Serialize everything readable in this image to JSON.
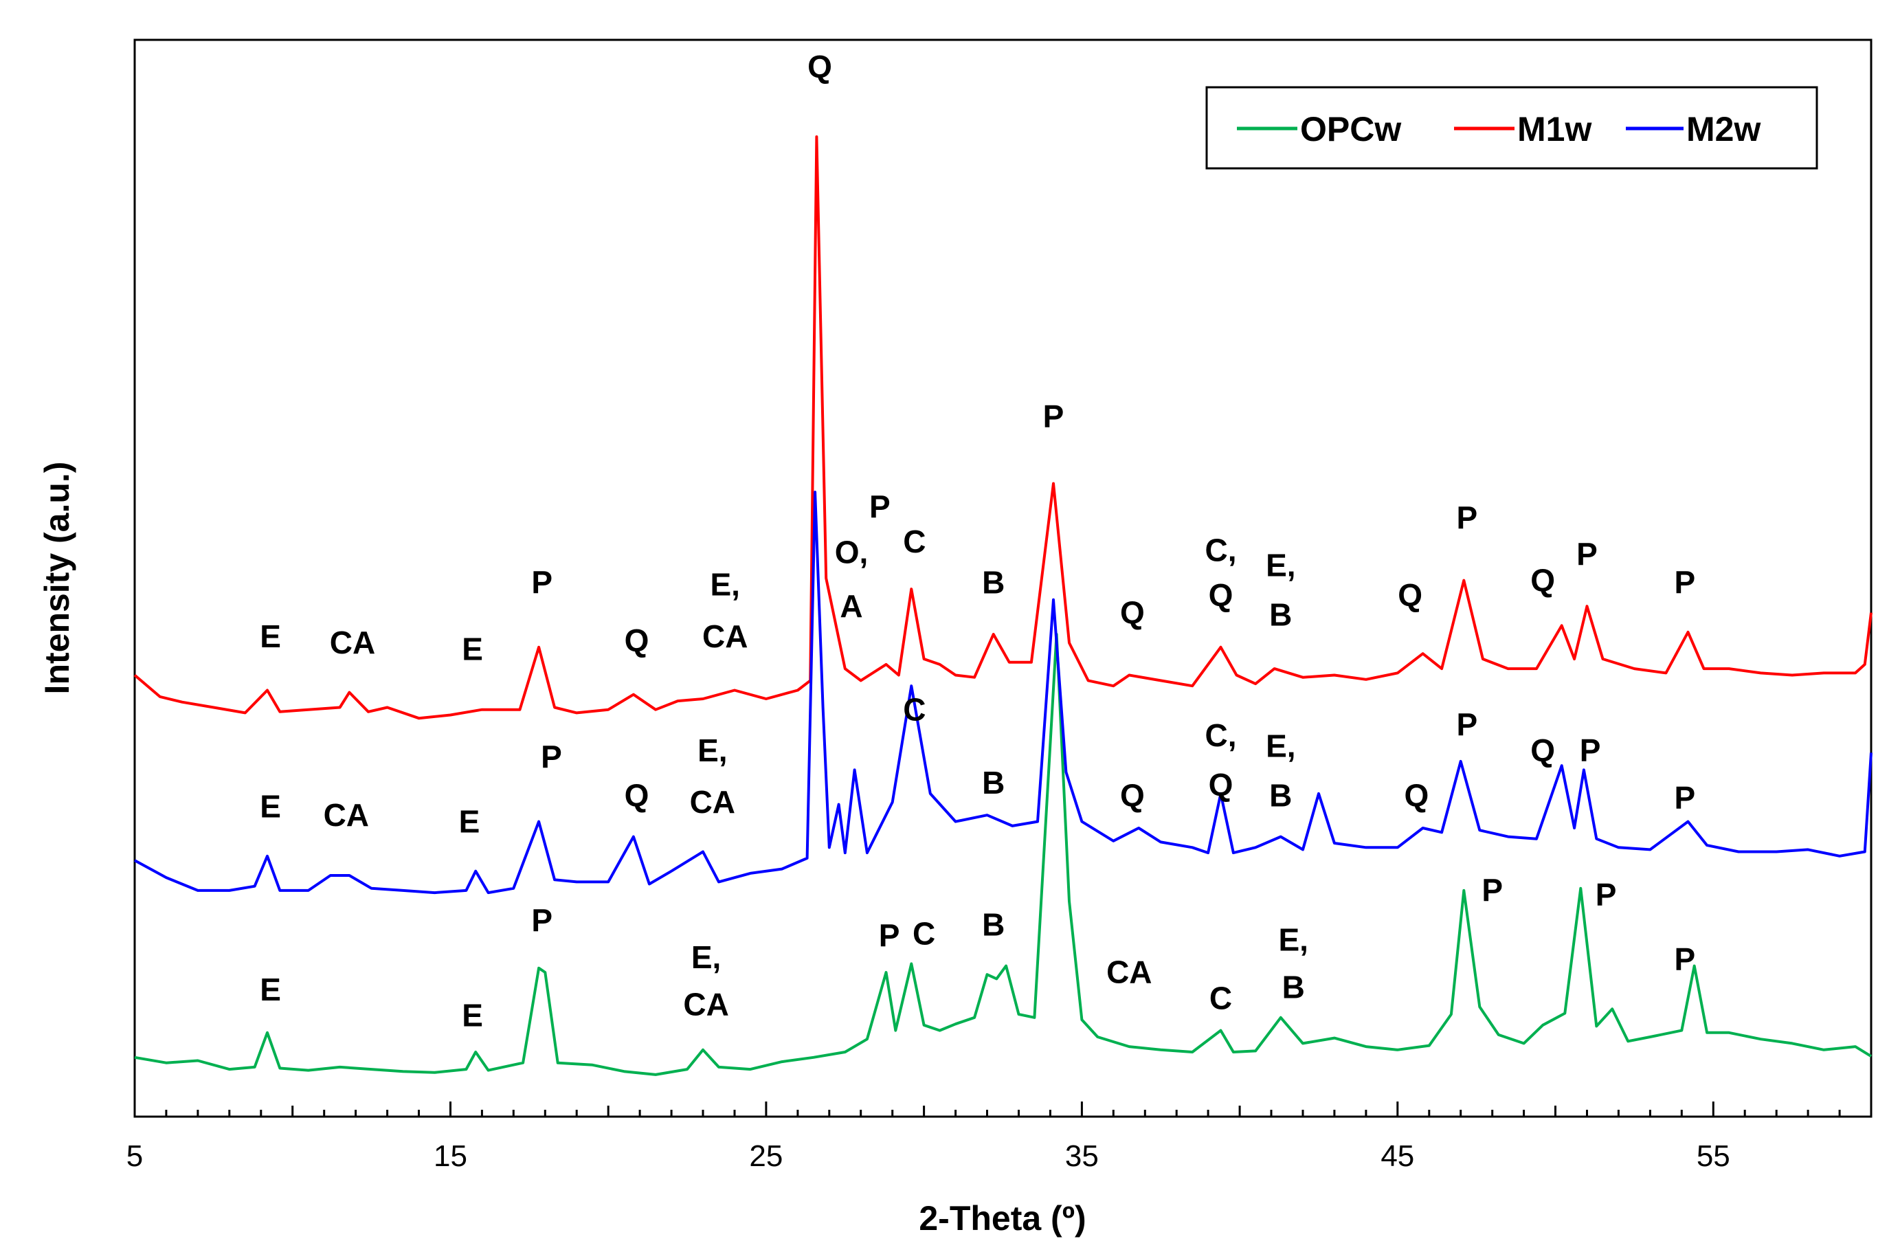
{
  "chart_data": {
    "type": "line",
    "title": "",
    "xlabel": "2-Theta (º)",
    "ylabel": "Intensity (a.u.)",
    "xlim": [
      5,
      60
    ],
    "ylim": [
      0,
      100
    ],
    "xticks": [
      5,
      15,
      25,
      35,
      45,
      55
    ],
    "yticks_shown": false,
    "grid": false,
    "legend_position": "top-right",
    "series": [
      {
        "name": "OPCw",
        "color": "#00b050",
        "points": [
          [
            5,
            5.5
          ],
          [
            6,
            5.0
          ],
          [
            7,
            5.2
          ],
          [
            8,
            4.4
          ],
          [
            8.8,
            4.6
          ],
          [
            9.2,
            7.8
          ],
          [
            9.6,
            4.5
          ],
          [
            10.5,
            4.3
          ],
          [
            11.5,
            4.6
          ],
          [
            12.5,
            4.4
          ],
          [
            13.5,
            4.2
          ],
          [
            14.5,
            4.1
          ],
          [
            15.5,
            4.4
          ],
          [
            15.8,
            6.0
          ],
          [
            16.2,
            4.3
          ],
          [
            17.3,
            5.0
          ],
          [
            17.8,
            13.8
          ],
          [
            18.0,
            13.4
          ],
          [
            18.4,
            5.0
          ],
          [
            19.5,
            4.8
          ],
          [
            20.5,
            4.2
          ],
          [
            21.5,
            3.9
          ],
          [
            22.5,
            4.4
          ],
          [
            23.0,
            6.2
          ],
          [
            23.5,
            4.6
          ],
          [
            24.5,
            4.4
          ],
          [
            25.5,
            5.1
          ],
          [
            26.5,
            5.5
          ],
          [
            27.5,
            6.0
          ],
          [
            28.2,
            7.2
          ],
          [
            28.8,
            13.4
          ],
          [
            29.1,
            8.0
          ],
          [
            29.6,
            14.2
          ],
          [
            30.0,
            8.5
          ],
          [
            30.5,
            8.0
          ],
          [
            31.0,
            8.6
          ],
          [
            31.6,
            9.2
          ],
          [
            32.0,
            13.2
          ],
          [
            32.3,
            12.8
          ],
          [
            32.6,
            14.0
          ],
          [
            33.0,
            9.5
          ],
          [
            33.5,
            9.2
          ],
          [
            34.2,
            44.8
          ],
          [
            34.6,
            20.0
          ],
          [
            35.0,
            9.0
          ],
          [
            35.5,
            7.4
          ],
          [
            36.5,
            6.5
          ],
          [
            37.5,
            6.2
          ],
          [
            38.5,
            6.0
          ],
          [
            39.4,
            8.0
          ],
          [
            39.8,
            6.0
          ],
          [
            40.5,
            6.1
          ],
          [
            41.3,
            9.2
          ],
          [
            42.0,
            6.8
          ],
          [
            43.0,
            7.3
          ],
          [
            44.0,
            6.5
          ],
          [
            45.0,
            6.2
          ],
          [
            46.0,
            6.6
          ],
          [
            46.7,
            9.5
          ],
          [
            47.1,
            21.0
          ],
          [
            47.6,
            10.2
          ],
          [
            48.2,
            7.6
          ],
          [
            49.0,
            6.8
          ],
          [
            49.6,
            8.5
          ],
          [
            50.3,
            9.6
          ],
          [
            50.8,
            21.2
          ],
          [
            51.3,
            8.4
          ],
          [
            51.8,
            10.0
          ],
          [
            52.3,
            7.0
          ],
          [
            53.0,
            7.4
          ],
          [
            54.0,
            8.0
          ],
          [
            54.4,
            14.0
          ],
          [
            54.8,
            7.8
          ],
          [
            55.5,
            7.8
          ],
          [
            56.5,
            7.2
          ],
          [
            57.5,
            6.8
          ],
          [
            58.5,
            6.2
          ],
          [
            59.5,
            6.5
          ],
          [
            60,
            5.6
          ]
        ]
      },
      {
        "name": "M1w",
        "color": "#ff0000",
        "points": [
          [
            5,
            41.0
          ],
          [
            5.8,
            39.0
          ],
          [
            6.5,
            38.5
          ],
          [
            7.5,
            38.0
          ],
          [
            8.5,
            37.5
          ],
          [
            9.2,
            39.6
          ],
          [
            9.6,
            37.6
          ],
          [
            10.5,
            37.8
          ],
          [
            11.5,
            38.0
          ],
          [
            11.8,
            39.4
          ],
          [
            12.4,
            37.6
          ],
          [
            13.0,
            38.0
          ],
          [
            14.0,
            37.0
          ],
          [
            15.0,
            37.3
          ],
          [
            16.0,
            37.8
          ],
          [
            17.2,
            37.8
          ],
          [
            17.8,
            43.6
          ],
          [
            18.3,
            38.0
          ],
          [
            19.0,
            37.5
          ],
          [
            20.0,
            37.8
          ],
          [
            20.8,
            39.2
          ],
          [
            21.5,
            37.8
          ],
          [
            22.2,
            38.6
          ],
          [
            23.0,
            38.8
          ],
          [
            24.0,
            39.6
          ],
          [
            25.0,
            38.8
          ],
          [
            26.0,
            39.6
          ],
          [
            26.4,
            40.5
          ],
          [
            26.6,
            91.0
          ],
          [
            26.9,
            50.0
          ],
          [
            27.5,
            41.6
          ],
          [
            28.0,
            40.5
          ],
          [
            28.8,
            42.0
          ],
          [
            29.2,
            41.0
          ],
          [
            29.6,
            49.0
          ],
          [
            30.0,
            42.5
          ],
          [
            30.5,
            42.0
          ],
          [
            31.0,
            41.0
          ],
          [
            31.6,
            40.8
          ],
          [
            32.2,
            44.8
          ],
          [
            32.7,
            42.2
          ],
          [
            33.4,
            42.2
          ],
          [
            34.1,
            58.8
          ],
          [
            34.6,
            44.0
          ],
          [
            35.2,
            40.5
          ],
          [
            36.0,
            40.0
          ],
          [
            36.5,
            41.0
          ],
          [
            37.5,
            40.5
          ],
          [
            38.5,
            40.0
          ],
          [
            39.4,
            43.6
          ],
          [
            39.9,
            41.0
          ],
          [
            40.5,
            40.2
          ],
          [
            41.1,
            41.6
          ],
          [
            42.0,
            40.8
          ],
          [
            43.0,
            41.0
          ],
          [
            44.0,
            40.6
          ],
          [
            45.0,
            41.2
          ],
          [
            45.8,
            43.0
          ],
          [
            46.4,
            41.6
          ],
          [
            47.1,
            49.8
          ],
          [
            47.7,
            42.5
          ],
          [
            48.5,
            41.6
          ],
          [
            49.4,
            41.6
          ],
          [
            50.2,
            45.6
          ],
          [
            50.6,
            42.5
          ],
          [
            51.0,
            47.4
          ],
          [
            51.5,
            42.5
          ],
          [
            52.5,
            41.6
          ],
          [
            53.5,
            41.2
          ],
          [
            54.2,
            45.0
          ],
          [
            54.7,
            41.6
          ],
          [
            55.5,
            41.6
          ],
          [
            56.5,
            41.2
          ],
          [
            57.5,
            41.0
          ],
          [
            58.5,
            41.2
          ],
          [
            59.5,
            41.2
          ],
          [
            59.8,
            42.0
          ],
          [
            60,
            46.8
          ]
        ]
      },
      {
        "name": "M2w",
        "color": "#0000ff",
        "points": [
          [
            5,
            23.8
          ],
          [
            6,
            22.2
          ],
          [
            7,
            21.0
          ],
          [
            8,
            21.0
          ],
          [
            8.8,
            21.4
          ],
          [
            9.2,
            24.2
          ],
          [
            9.6,
            21.0
          ],
          [
            10.5,
            21.0
          ],
          [
            11.2,
            22.4
          ],
          [
            11.8,
            22.4
          ],
          [
            12.5,
            21.2
          ],
          [
            13.5,
            21.0
          ],
          [
            14.5,
            20.8
          ],
          [
            15.5,
            21.0
          ],
          [
            15.8,
            22.8
          ],
          [
            16.2,
            20.8
          ],
          [
            17.0,
            21.2
          ],
          [
            17.8,
            27.4
          ],
          [
            18.3,
            22.0
          ],
          [
            19.0,
            21.8
          ],
          [
            20.0,
            21.8
          ],
          [
            20.8,
            26.0
          ],
          [
            21.3,
            21.6
          ],
          [
            22.0,
            22.8
          ],
          [
            23.0,
            24.6
          ],
          [
            23.5,
            21.8
          ],
          [
            24.5,
            22.6
          ],
          [
            25.5,
            23.0
          ],
          [
            26.3,
            24.0
          ],
          [
            26.55,
            58.0
          ],
          [
            26.8,
            38.0
          ],
          [
            27.0,
            25.0
          ],
          [
            27.3,
            29.0
          ],
          [
            27.5,
            24.5
          ],
          [
            27.8,
            32.2
          ],
          [
            28.2,
            24.5
          ],
          [
            29.0,
            29.2
          ],
          [
            29.6,
            40.0
          ],
          [
            30.2,
            30.0
          ],
          [
            31.0,
            27.4
          ],
          [
            32.0,
            28.0
          ],
          [
            32.8,
            27.0
          ],
          [
            33.6,
            27.4
          ],
          [
            34.1,
            48.0
          ],
          [
            34.5,
            32.0
          ],
          [
            35.0,
            27.4
          ],
          [
            35.5,
            26.5
          ],
          [
            36.0,
            25.6
          ],
          [
            36.8,
            26.8
          ],
          [
            37.5,
            25.5
          ],
          [
            38.5,
            25.0
          ],
          [
            39.0,
            24.5
          ],
          [
            39.4,
            30.0
          ],
          [
            39.8,
            24.5
          ],
          [
            40.5,
            25.0
          ],
          [
            41.3,
            26.0
          ],
          [
            42.0,
            24.8
          ],
          [
            42.5,
            30.0
          ],
          [
            43.0,
            25.4
          ],
          [
            44.0,
            25.0
          ],
          [
            45.0,
            25.0
          ],
          [
            45.8,
            26.8
          ],
          [
            46.4,
            26.4
          ],
          [
            47.0,
            33.0
          ],
          [
            47.6,
            26.6
          ],
          [
            48.5,
            26.0
          ],
          [
            49.4,
            25.8
          ],
          [
            50.2,
            32.6
          ],
          [
            50.6,
            26.8
          ],
          [
            50.9,
            32.2
          ],
          [
            51.3,
            25.8
          ],
          [
            52.0,
            25.0
          ],
          [
            53.0,
            24.8
          ],
          [
            54.2,
            27.4
          ],
          [
            54.8,
            25.2
          ],
          [
            55.8,
            24.6
          ],
          [
            57.0,
            24.6
          ],
          [
            58.0,
            24.8
          ],
          [
            59.0,
            24.2
          ],
          [
            59.8,
            24.6
          ],
          [
            60,
            33.8
          ]
        ]
      }
    ],
    "peak_labels": [
      {
        "text": "Q",
        "x": 26.7,
        "y": 96.5
      },
      {
        "text": "P",
        "x": 34.1,
        "y": 64.0
      },
      {
        "text": "E",
        "x": 9.3,
        "y": 43.6
      },
      {
        "text": "CA",
        "x": 11.9,
        "y": 43.0
      },
      {
        "text": "E",
        "x": 15.7,
        "y": 42.4
      },
      {
        "text": "P",
        "x": 17.9,
        "y": 48.6
      },
      {
        "text": "Q",
        "x": 20.9,
        "y": 43.2
      },
      {
        "text": "E,",
        "x": 23.7,
        "y": 48.4
      },
      {
        "text": "CA",
        "x": 23.7,
        "y": 43.6
      },
      {
        "text": "P",
        "x": 28.6,
        "y": 55.6
      },
      {
        "text": "O,",
        "x": 27.7,
        "y": 51.4
      },
      {
        "text": "A",
        "x": 27.7,
        "y": 46.4
      },
      {
        "text": "C",
        "x": 29.7,
        "y": 52.4
      },
      {
        "text": "B",
        "x": 32.2,
        "y": 48.6
      },
      {
        "text": "Q",
        "x": 36.6,
        "y": 45.8
      },
      {
        "text": "C,",
        "x": 39.4,
        "y": 51.6
      },
      {
        "text": "Q",
        "x": 39.4,
        "y": 47.4
      },
      {
        "text": "E,",
        "x": 41.3,
        "y": 50.2
      },
      {
        "text": "B",
        "x": 41.3,
        "y": 45.6
      },
      {
        "text": "Q",
        "x": 45.4,
        "y": 47.4
      },
      {
        "text": "P",
        "x": 47.2,
        "y": 54.6
      },
      {
        "text": "Q",
        "x": 49.6,
        "y": 48.8
      },
      {
        "text": "P",
        "x": 51.0,
        "y": 51.2
      },
      {
        "text": "P",
        "x": 54.1,
        "y": 48.6
      },
      {
        "text": "E",
        "x": 9.3,
        "y": 27.8
      },
      {
        "text": "CA",
        "x": 11.7,
        "y": 27.0
      },
      {
        "text": "E",
        "x": 15.6,
        "y": 26.4
      },
      {
        "text": "P",
        "x": 18.2,
        "y": 32.4
      },
      {
        "text": "Q",
        "x": 20.9,
        "y": 28.8
      },
      {
        "text": "E,",
        "x": 23.3,
        "y": 33.0
      },
      {
        "text": "CA",
        "x": 23.3,
        "y": 28.2
      },
      {
        "text": "C",
        "x": 29.7,
        "y": 36.8
      },
      {
        "text": "B",
        "x": 32.2,
        "y": 30.0
      },
      {
        "text": "Q",
        "x": 36.6,
        "y": 28.8
      },
      {
        "text": "C,",
        "x": 39.4,
        "y": 34.4
      },
      {
        "text": "Q",
        "x": 39.4,
        "y": 29.8
      },
      {
        "text": "E,",
        "x": 41.3,
        "y": 33.4
      },
      {
        "text": "B",
        "x": 41.3,
        "y": 28.8
      },
      {
        "text": "Q",
        "x": 45.6,
        "y": 28.8
      },
      {
        "text": "P",
        "x": 47.2,
        "y": 35.4
      },
      {
        "text": "Q",
        "x": 49.6,
        "y": 33.0
      },
      {
        "text": "P",
        "x": 51.1,
        "y": 33.0
      },
      {
        "text": "P",
        "x": 54.1,
        "y": 28.6
      },
      {
        "text": "E",
        "x": 9.3,
        "y": 10.8
      },
      {
        "text": "E",
        "x": 15.7,
        "y": 8.4
      },
      {
        "text": "P",
        "x": 17.9,
        "y": 17.2
      },
      {
        "text": "E,",
        "x": 23.1,
        "y": 13.8
      },
      {
        "text": "CA",
        "x": 23.1,
        "y": 9.4
      },
      {
        "text": "P",
        "x": 28.9,
        "y": 15.8
      },
      {
        "text": "C",
        "x": 30.0,
        "y": 16.0
      },
      {
        "text": "B",
        "x": 32.2,
        "y": 16.8
      },
      {
        "text": "CA",
        "x": 36.5,
        "y": 12.4
      },
      {
        "text": "C",
        "x": 39.4,
        "y": 10.0
      },
      {
        "text": "E,",
        "x": 41.7,
        "y": 15.4
      },
      {
        "text": "B",
        "x": 41.7,
        "y": 11.0
      },
      {
        "text": "P",
        "x": 48.0,
        "y": 20.0
      },
      {
        "text": "P",
        "x": 51.6,
        "y": 19.6
      },
      {
        "text": "P",
        "x": 54.1,
        "y": 13.6
      }
    ]
  }
}
